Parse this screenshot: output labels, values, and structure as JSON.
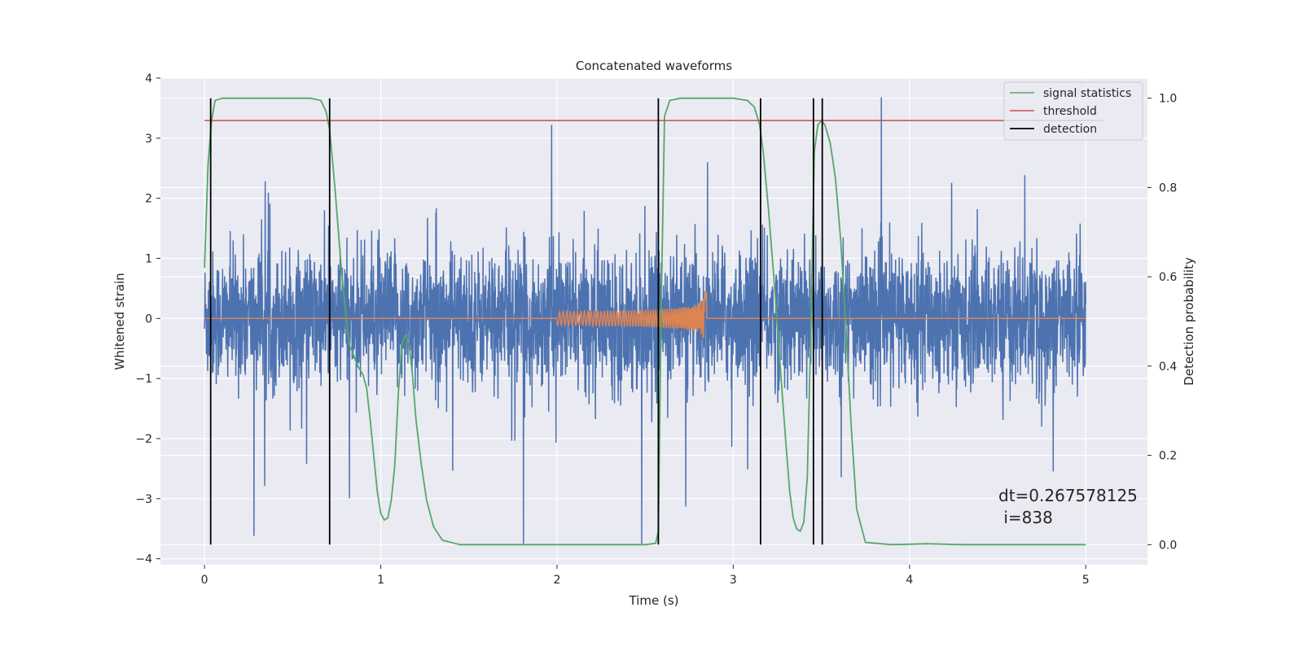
{
  "chart_data": {
    "type": "line",
    "title": "Concatenated waveforms",
    "xlabel": "Time (s)",
    "ylabel": "Whitened strain",
    "y2label": "Detection probability",
    "xlim": [
      -0.25,
      5.35
    ],
    "ylim": [
      -4.1,
      4.0
    ],
    "y2lim": [
      -0.045,
      1.045
    ],
    "xticks": [
      0,
      1,
      2,
      3,
      4,
      5
    ],
    "yticks": [
      4,
      3,
      2,
      1,
      0,
      -1,
      -2,
      -3,
      -4
    ],
    "y2ticks": [
      1.0,
      0.8,
      0.6,
      0.4,
      0.2,
      0.0
    ],
    "grid": true,
    "legend_position": "top-right",
    "legend": [
      {
        "label": "signal statistics",
        "color": "#55a868"
      },
      {
        "label": "threshold",
        "color": "#c44e52"
      },
      {
        "label": "detection",
        "color": "#000000"
      }
    ],
    "series": [
      {
        "name": "strain",
        "axis": "left",
        "color": "#4c72b0",
        "x_range": [
          0,
          5
        ],
        "sigma": 0.55,
        "spikes": [
          {
            "x": 1.81,
            "y": -3.75
          },
          {
            "x": 2.48,
            "y": -3.75
          },
          {
            "x": 3.84,
            "y": 3.68
          },
          {
            "x": 0.28,
            "y": -3.62
          },
          {
            "x": 1.97,
            "y": 3.22
          },
          {
            "x": 2.73,
            "y": -3.13
          }
        ]
      },
      {
        "name": "template",
        "axis": "left",
        "color": "#dd8452",
        "x_range": [
          0,
          5
        ],
        "chirp_start": 2.0,
        "chirp_peak": 2.84,
        "peak_amplitude": 0.8
      },
      {
        "name": "signal statistics",
        "axis": "right",
        "color": "#55a868",
        "x": [
          0,
          0.02,
          0.04,
          0.06,
          0.1,
          0.2,
          0.4,
          0.6,
          0.66,
          0.69,
          0.71,
          0.74,
          0.78,
          0.82,
          0.87,
          0.9,
          0.92,
          0.94,
          0.96,
          0.98,
          1.0,
          1.02,
          1.04,
          1.06,
          1.08,
          1.1,
          1.12,
          1.14,
          1.16,
          1.18,
          1.2,
          1.23,
          1.26,
          1.3,
          1.35,
          1.45,
          1.8,
          2.3,
          2.5,
          2.56,
          2.575,
          2.59,
          2.61,
          2.64,
          2.7,
          3.0,
          3.08,
          3.12,
          3.15,
          3.17,
          3.2,
          3.24,
          3.27,
          3.3,
          3.32,
          3.34,
          3.36,
          3.38,
          3.4,
          3.42,
          3.44,
          3.46,
          3.48,
          3.5,
          3.52,
          3.55,
          3.58,
          3.61,
          3.64,
          3.67,
          3.7,
          3.75,
          3.9,
          4.1,
          4.3,
          5.0
        ],
        "y": [
          0.62,
          0.85,
          0.95,
          0.995,
          1.0,
          1.0,
          1.0,
          1.0,
          0.995,
          0.97,
          0.93,
          0.8,
          0.6,
          0.45,
          0.4,
          0.38,
          0.35,
          0.28,
          0.2,
          0.12,
          0.07,
          0.055,
          0.06,
          0.1,
          0.18,
          0.34,
          0.45,
          0.47,
          0.45,
          0.38,
          0.28,
          0.18,
          0.1,
          0.04,
          0.01,
          0.0,
          0.0,
          0.0,
          0.0,
          0.003,
          0.03,
          0.5,
          0.96,
          0.995,
          1.0,
          1.0,
          0.995,
          0.98,
          0.94,
          0.88,
          0.75,
          0.55,
          0.38,
          0.22,
          0.12,
          0.06,
          0.035,
          0.03,
          0.05,
          0.15,
          0.48,
          0.88,
          0.94,
          0.95,
          0.94,
          0.9,
          0.82,
          0.68,
          0.48,
          0.26,
          0.08,
          0.005,
          0.0,
          0.002,
          0.0,
          0.0
        ]
      },
      {
        "name": "threshold",
        "axis": "right",
        "color": "#c44e52",
        "x": [
          0,
          5.1
        ],
        "y": [
          0.95,
          0.95
        ]
      }
    ],
    "detections": [
      0.035,
      0.71,
      2.575,
      3.155,
      3.455,
      3.505
    ],
    "detection_range": [
      0.0,
      1.0
    ],
    "annotations": [
      "dt=0.267578125",
      " i=838"
    ]
  }
}
